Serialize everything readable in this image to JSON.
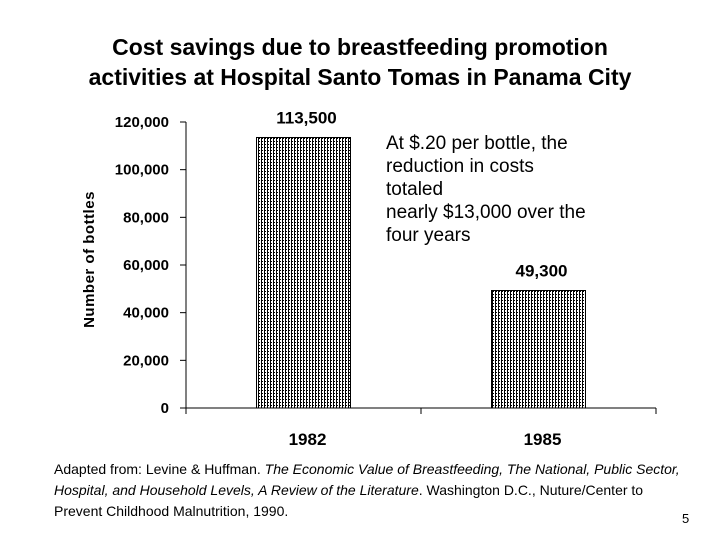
{
  "slide": {
    "title_lines": [
      "Cost savings due to breastfeeding promotion",
      "activities at Hospital Santo Tomas in Panama City"
    ],
    "annotation": "At $.20 per bottle, the\nreduction in costs totaled\nnearly $13,000 over the\nfour years",
    "citation": {
      "prefix": "Adapted from: Levine & Huffman. ",
      "italic": "The Economic Value of Breastfeeding, The National, Public Sector, Hospital, and Household Levels, A Review of the Literature",
      "suffix": ". Washington D.C., Nuture/Center to Prevent Childhood Malnutrition, 1990."
    },
    "page_number": "5"
  },
  "chart_data": {
    "type": "bar",
    "title": "",
    "xlabel": "",
    "ylabel": "Number of bottles",
    "categories": [
      "1982",
      "1985"
    ],
    "values": [
      113500,
      49300
    ],
    "data_labels": [
      "113,500",
      "49,300"
    ],
    "yticks": [
      0,
      20000,
      40000,
      60000,
      80000,
      100000,
      120000
    ],
    "ytick_labels": [
      "0",
      "20,000",
      "40,000",
      "60,000",
      "80,000",
      "100,000",
      "120,000"
    ],
    "ylim": [
      0,
      120000
    ],
    "grid": false,
    "bar_fill": "crosshatch",
    "bar_color": "#000000"
  }
}
